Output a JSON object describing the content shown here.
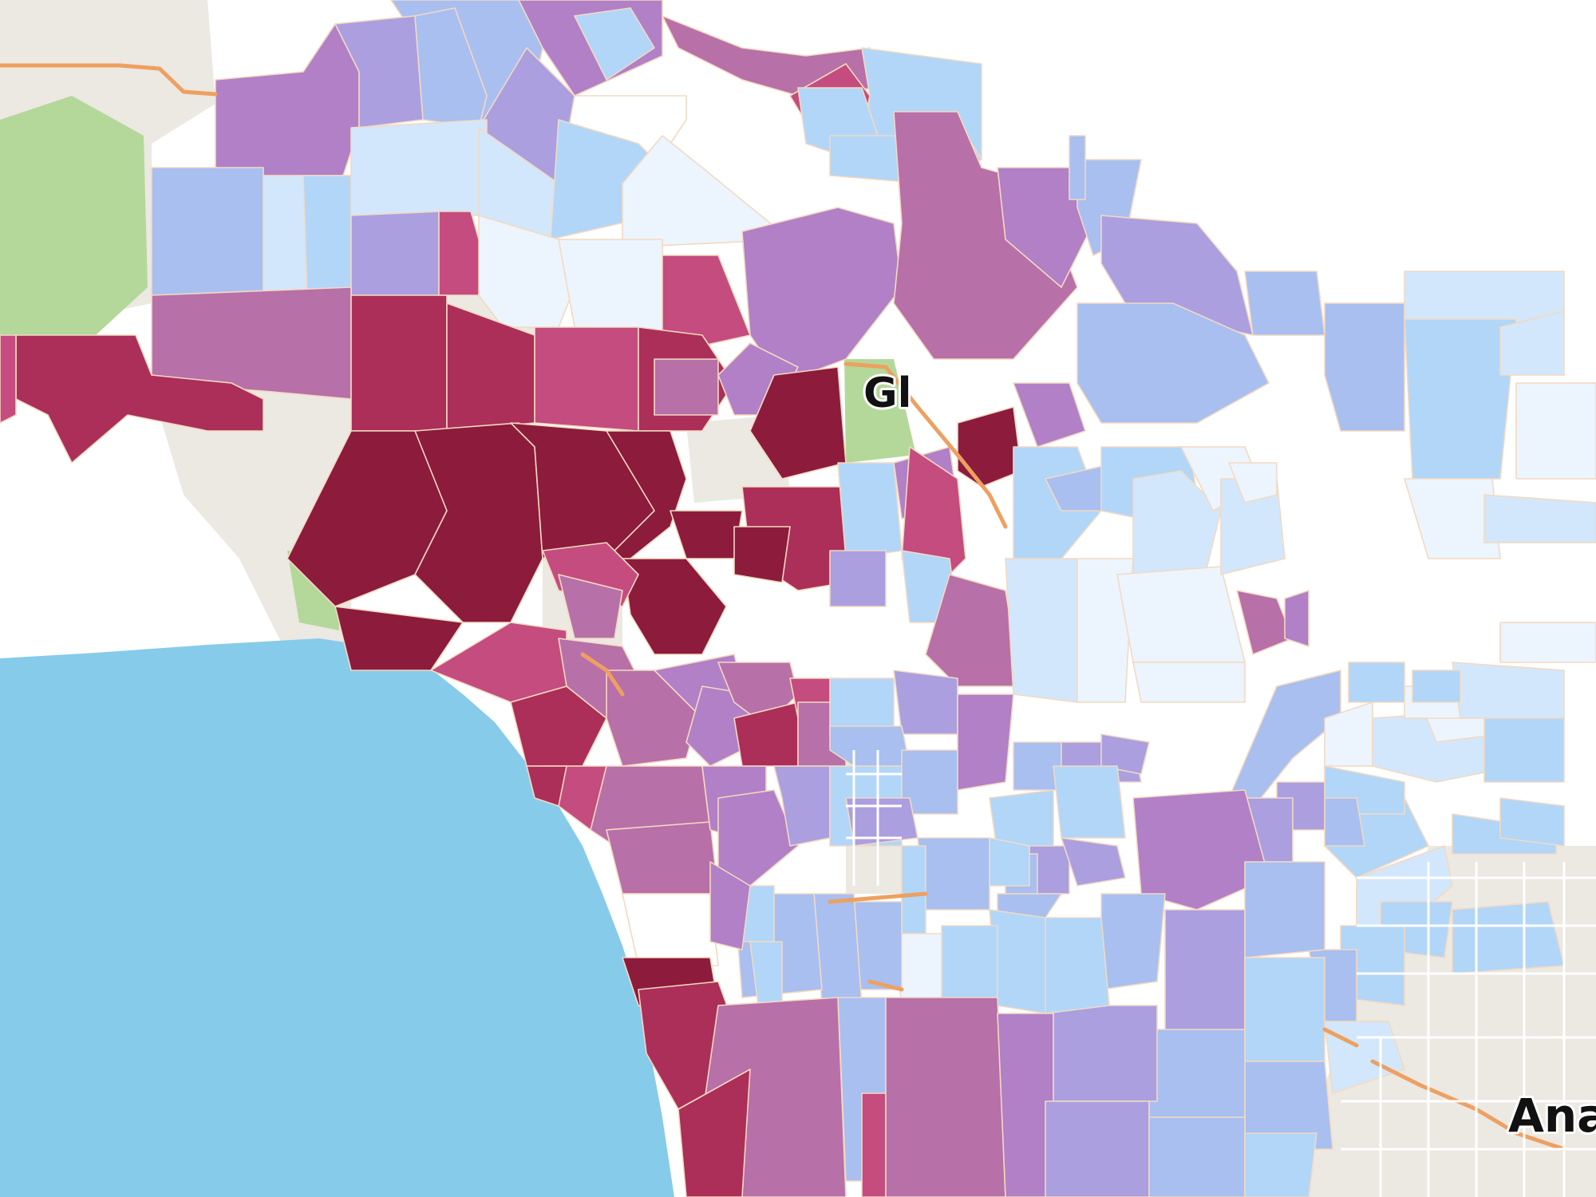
{
  "map": {
    "labels": {
      "glendale_partial": "Gl",
      "anaheim_partial": "Ana"
    },
    "colors": {
      "ocean": "#87cbea",
      "land": "#ece8e2",
      "park": "#b4d89a",
      "boundary": "#f3d9c2",
      "road": "#eea060",
      "choropleth_scale": [
        "#ecf5fd",
        "#d2e7fb",
        "#b1d6f8",
        "#a8bff0",
        "#ab9fe0",
        "#b180c6",
        "#b870a8",
        "#c44c7e",
        "#ab2f58",
        "#8c1b3c"
      ]
    },
    "icons": [
      "city-label",
      "choropleth-region",
      "coastline",
      "freeway"
    ]
  }
}
